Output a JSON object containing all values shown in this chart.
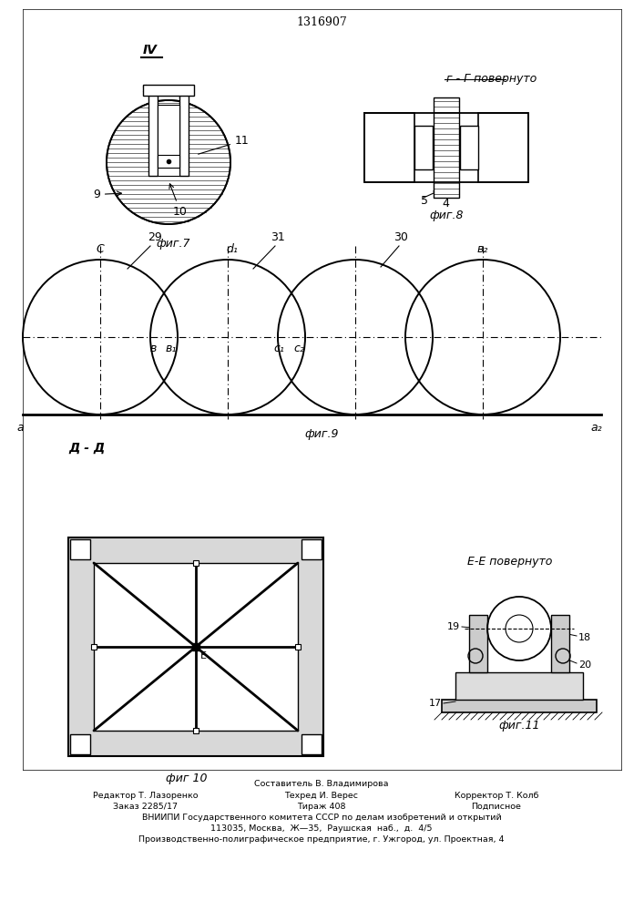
{
  "patent_number": "1316907",
  "background_color": "#ffffff",
  "line_color": "#000000",
  "fig7_label": "фиг.7",
  "fig8_label": "фиг.8",
  "fig9_label": "фиг.9",
  "fig10_label": "фиг 10",
  "fig11_label": "фиг.11",
  "label_IV": "IV",
  "label_GG": "г - Г повернуто",
  "label_DD": "Д - Д",
  "label_EE": "Е-Е повернуто",
  "footer_line1": "Составитель В. Владимирова",
  "footer_col1_line1": "Редактор Т. Лазоренко",
  "footer_col2_line1": "Техред И. Верес",
  "footer_col3_line1": "Корректор Т. Колб",
  "footer_col1_line2": "Заказ 2285/17",
  "footer_col2_line2": "Тираж 408",
  "footer_col3_line2": "Подписное",
  "footer_line4": "ВНИИПИ Государственного комитета СССР по делам изобретений и открытий",
  "footer_line5": "113035, Москва,  Ж—35,  Раушская  наб.,  д.  4/5",
  "footer_line6": "Производственно-полиграфическое предприятие, г. Ужгород, ул. Проектная, 4"
}
